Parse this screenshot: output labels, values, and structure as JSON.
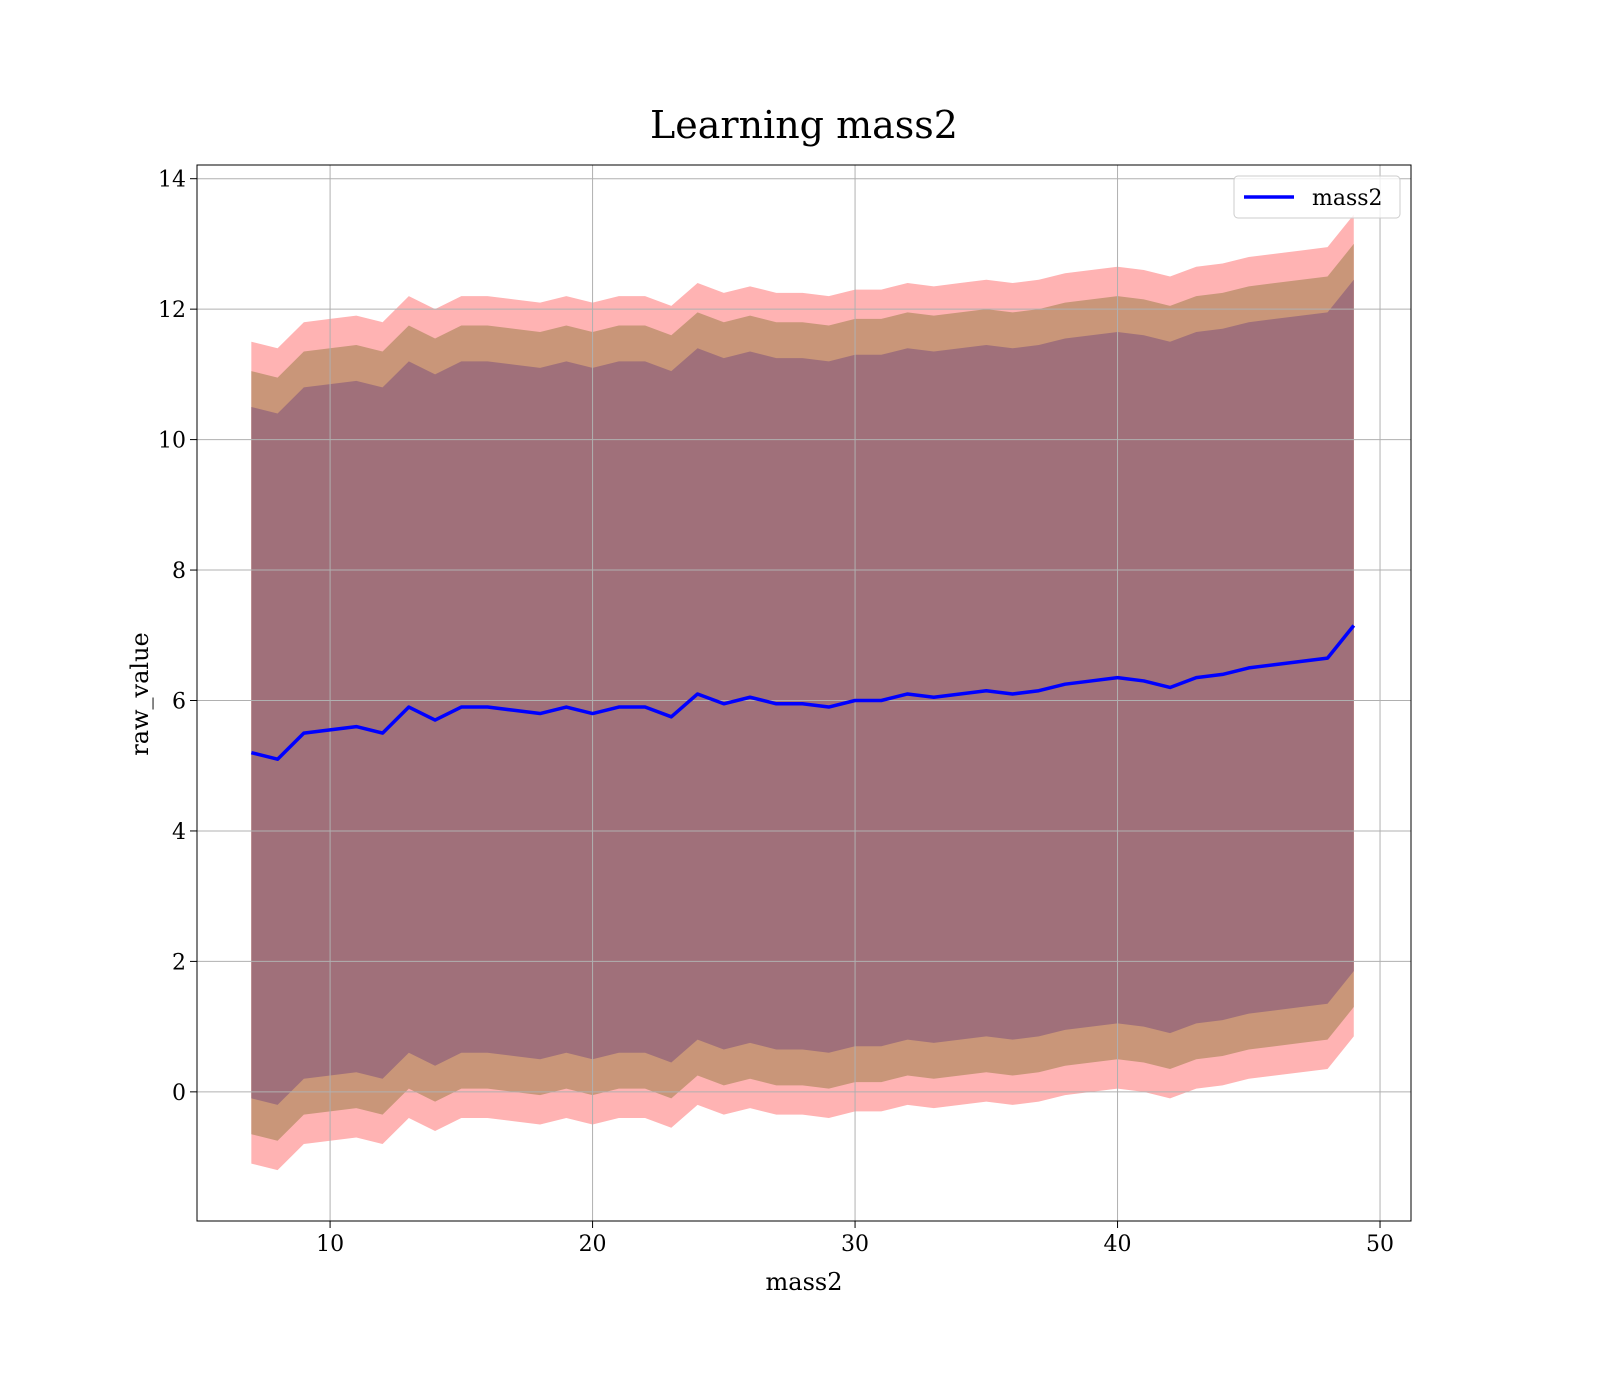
{
  "chart_data": {
    "type": "line",
    "title": "Learning mass2",
    "x_label": "mass2",
    "y_label": "raw_value",
    "x": [
      7,
      8,
      9,
      10,
      11,
      12,
      13,
      14,
      15,
      16,
      17,
      18,
      19,
      20,
      21,
      22,
      23,
      24,
      25,
      26,
      27,
      28,
      29,
      30,
      31,
      32,
      33,
      34,
      35,
      36,
      37,
      38,
      39,
      40,
      41,
      42,
      43,
      44,
      45,
      46,
      47,
      48,
      49
    ],
    "series": [
      {
        "name": "mass2",
        "color": "#0000ff",
        "values": [
          5.2,
          5.1,
          5.5,
          5.55,
          5.6,
          5.5,
          5.9,
          5.7,
          5.9,
          5.9,
          5.85,
          5.8,
          5.9,
          5.8,
          5.9,
          5.9,
          5.75,
          6.1,
          5.95,
          6.05,
          5.95,
          5.95,
          5.9,
          6.0,
          6.0,
          6.1,
          6.05,
          6.1,
          6.15,
          6.1,
          6.15,
          6.25,
          6.3,
          6.35,
          6.3,
          6.2,
          6.35,
          6.4,
          6.5,
          6.55,
          6.6,
          6.65,
          7.15
        ]
      }
    ],
    "bands": [
      {
        "color": "#ffb3b3",
        "upper": [
          11.5,
          11.4,
          11.8,
          11.85,
          11.9,
          11.8,
          12.2,
          12.0,
          12.2,
          12.2,
          12.15,
          12.1,
          12.2,
          12.1,
          12.2,
          12.2,
          12.05,
          12.4,
          12.25,
          12.35,
          12.25,
          12.25,
          12.2,
          12.3,
          12.3,
          12.4,
          12.35,
          12.4,
          12.45,
          12.4,
          12.45,
          12.55,
          12.6,
          12.65,
          12.6,
          12.5,
          12.65,
          12.7,
          12.8,
          12.85,
          12.9,
          12.95,
          13.45
        ],
        "lower": [
          -1.1,
          -1.2,
          -0.8,
          -0.75,
          -0.7,
          -0.8,
          -0.4,
          -0.6,
          -0.4,
          -0.4,
          -0.45,
          -0.5,
          -0.4,
          -0.5,
          -0.4,
          -0.4,
          -0.55,
          -0.2,
          -0.35,
          -0.25,
          -0.35,
          -0.35,
          -0.4,
          -0.3,
          -0.3,
          -0.2,
          -0.25,
          -0.2,
          -0.15,
          -0.2,
          -0.15,
          -0.05,
          0,
          0.05,
          0,
          -0.1,
          0.05,
          0.1,
          0.2,
          0.25,
          0.3,
          0.35,
          0.85
        ]
      },
      {
        "color": "#c99679",
        "upper": [
          11.05,
          10.95,
          11.35,
          11.4,
          11.45,
          11.35,
          11.75,
          11.55,
          11.75,
          11.75,
          11.7,
          11.65,
          11.75,
          11.65,
          11.75,
          11.75,
          11.6,
          11.95,
          11.8,
          11.9,
          11.8,
          11.8,
          11.75,
          11.85,
          11.85,
          11.95,
          11.9,
          11.95,
          12.0,
          11.95,
          12.0,
          12.1,
          12.15,
          12.2,
          12.15,
          12.05,
          12.2,
          12.25,
          12.35,
          12.4,
          12.45,
          12.5,
          13.0
        ],
        "lower": [
          -0.65,
          -0.75,
          -0.35,
          -0.3,
          -0.25,
          -0.35,
          0.05,
          -0.15,
          0.05,
          0.05,
          0,
          -0.05,
          0.05,
          -0.05,
          0.05,
          0.05,
          -0.1,
          0.25,
          0.1,
          0.2,
          0.1,
          0.1,
          0.05,
          0.15,
          0.15,
          0.25,
          0.2,
          0.25,
          0.3,
          0.25,
          0.3,
          0.4,
          0.45,
          0.5,
          0.45,
          0.35,
          0.5,
          0.55,
          0.65,
          0.7,
          0.75,
          0.8,
          1.3
        ]
      },
      {
        "color": "#a0707a",
        "upper": [
          10.5,
          10.4,
          10.8,
          10.85,
          10.9,
          10.8,
          11.2,
          11.0,
          11.2,
          11.2,
          11.15,
          11.1,
          11.2,
          11.1,
          11.2,
          11.2,
          11.05,
          11.4,
          11.25,
          11.35,
          11.25,
          11.25,
          11.2,
          11.3,
          11.3,
          11.4,
          11.35,
          11.4,
          11.45,
          11.4,
          11.45,
          11.55,
          11.6,
          11.65,
          11.6,
          11.5,
          11.65,
          11.7,
          11.8,
          11.85,
          11.9,
          11.95,
          12.45
        ],
        "lower": [
          -0.1,
          -0.2,
          0.2,
          0.25,
          0.3,
          0.2,
          0.6,
          0.4,
          0.6,
          0.6,
          0.55,
          0.5,
          0.6,
          0.5,
          0.6,
          0.6,
          0.45,
          0.8,
          0.65,
          0.75,
          0.65,
          0.65,
          0.6,
          0.7,
          0.7,
          0.8,
          0.75,
          0.8,
          0.85,
          0.8,
          0.85,
          0.95,
          1.0,
          1.05,
          1.0,
          0.9,
          1.05,
          1.1,
          1.2,
          1.25,
          1.3,
          1.35,
          1.85
        ]
      }
    ],
    "xlim": [
      4.93,
      51.18
    ],
    "ylim": [
      -1.98,
      14.21
    ],
    "xticks": [
      10,
      20,
      30,
      40,
      50
    ],
    "yticks": [
      0,
      2,
      4,
      6,
      8,
      10,
      12,
      14
    ],
    "grid": true,
    "legend": "upper right"
  }
}
